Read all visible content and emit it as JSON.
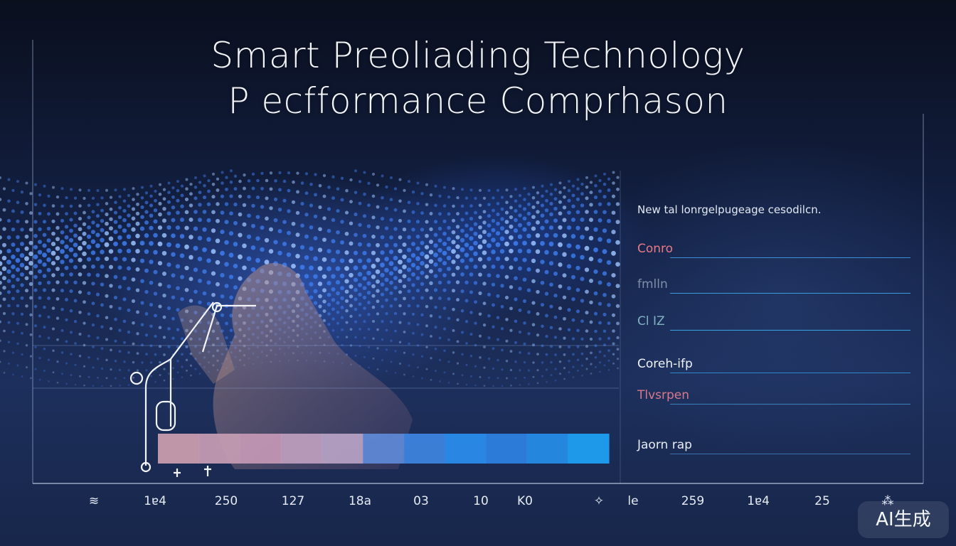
{
  "title": {
    "line1": "Smart Preoliading Technology",
    "line2": "P ecfformance Comprhason"
  },
  "legend": {
    "heading": "New tal lonrgelpugeage cesodilcn.",
    "items": [
      {
        "label": "Conro",
        "color": "#e87a86",
        "line_color": "#3f8fd6"
      },
      {
        "label": "fmlln",
        "color": "#7f8fa8",
        "line_color": "#3b9bdc"
      },
      {
        "label": "Cl IZ",
        "color": "#7fb3c2",
        "line_color": "#3aa4e0"
      },
      {
        "label": "Coreh-ifp",
        "color": "#f0f3f8",
        "line_color": "#2f86c8"
      },
      {
        "label": "Tlvsrpen",
        "color": "#d9788a",
        "line_color": "#3d7fbd"
      },
      {
        "label": "Jaorn rap",
        "color": "#e8ecf4",
        "line_color": "#3b6fb0"
      }
    ]
  },
  "chart_data": {
    "type": "bar",
    "title": "Smart Preoliading Technology P ecfformance Comprhason",
    "xtick_labels": [
      "≋",
      "1ɐ4",
      "250",
      "127",
      "18a",
      "03",
      "10",
      "K0",
      "✧",
      "le",
      "259",
      "1ɐ4",
      "25",
      "⁂"
    ],
    "bar_segments": [
      {
        "color": "#cda0b0"
      },
      {
        "color": "#c79db4"
      },
      {
        "color": "#c499b5"
      },
      {
        "color": "#bfa0be"
      },
      {
        "color": "#b8a3c4"
      },
      {
        "color": "#5f8ad8"
      },
      {
        "color": "#3d86e2"
      },
      {
        "color": "#2a8ff0"
      },
      {
        "color": "#2f82e4"
      },
      {
        "color": "#268eea"
      },
      {
        "color": "#1ea2f5"
      }
    ]
  },
  "watermark": {
    "text": "AI生成"
  },
  "colors": {
    "title": "#f2f4f8",
    "frame": "#9fb4d6",
    "accent": "#1ea2f5"
  }
}
